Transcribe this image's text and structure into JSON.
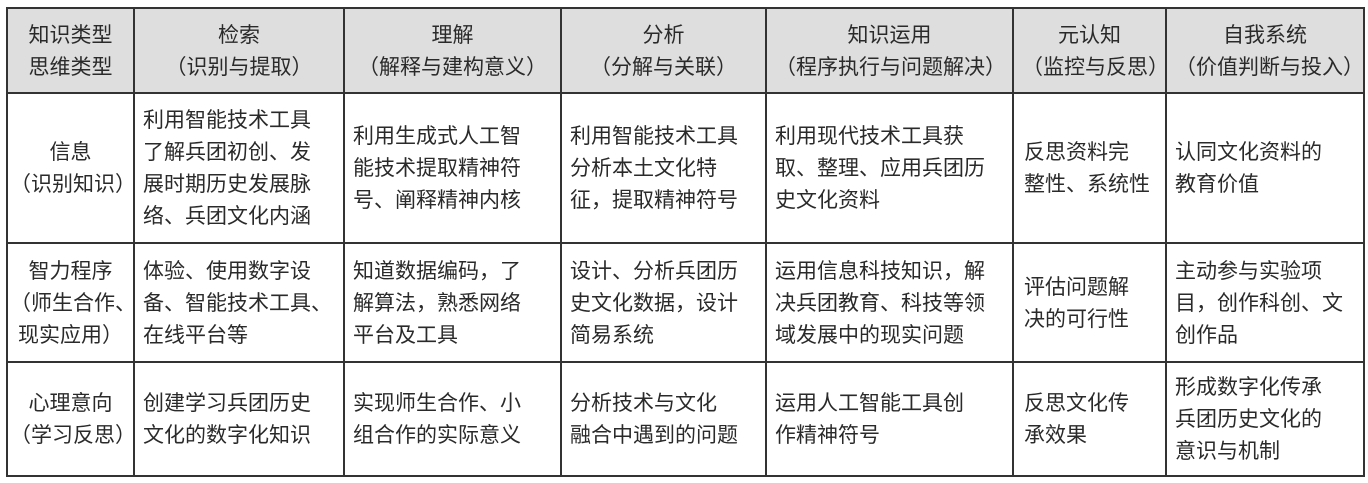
{
  "header": [
    [
      "知识类型",
      "思维类型"
    ],
    [
      "检索",
      "（识别与提取）"
    ],
    [
      "理解",
      "（解释与建构意义）"
    ],
    [
      "分析",
      "（分解与关联）"
    ],
    [
      "知识运用",
      "（程序执行与问题解决）"
    ],
    [
      "元认知",
      "（监控与反思）"
    ],
    [
      "自我系统",
      "（价值判断与投入）"
    ]
  ],
  "rows": [
    [
      [
        "信息",
        "（识别知识）"
      ],
      [
        "利用智能技术工具",
        "了解兵团初创、发",
        "展时期历史发展脉",
        "络、兵团文化内涵"
      ],
      [
        "利用生成式人工智",
        "能技术提取精神符",
        "号、阐释精神内核"
      ],
      [
        "利用智能技术工具",
        "分析本土文化特",
        "征，提取精神符号"
      ],
      [
        "利用现代技术工具获",
        "取、整理、应用兵团历",
        "史文化资料"
      ],
      [
        "反思资料完",
        "整性、系统性"
      ],
      [
        "认同文化资料的",
        "教育价值"
      ]
    ],
    [
      [
        "智力程序",
        "（师生合作、",
        "现实应用）"
      ],
      [
        "体验、使用数字设",
        "备、智能技术工具、",
        "在线平台等"
      ],
      [
        "知道数据编码，了",
        "解算法，熟悉网络",
        "平台及工具"
      ],
      [
        "设计、分析兵团历",
        "史文化数据，设计",
        "简易系统"
      ],
      [
        "运用信息科技知识，解",
        "决兵团教育、科技等领",
        "域发展中的现实问题"
      ],
      [
        "评估问题解",
        "决的可行性"
      ],
      [
        "主动参与实验项",
        "目，创作科创、文",
        "创作品"
      ]
    ],
    [
      [
        "心理意向",
        "（学习反思）"
      ],
      [
        "创建学习兵团历史",
        "文化的数字化知识"
      ],
      [
        "实现师生合作、小",
        "组合作的实际意义"
      ],
      [
        "分析技术与文化",
        "融合中遇到的问题"
      ],
      [
        "运用人工智能工具创",
        "作精神符号"
      ],
      [
        "反思文化传",
        "承效果"
      ],
      [
        "形成数字化传承",
        "兵团历史文化的",
        "意识与机制"
      ]
    ]
  ]
}
